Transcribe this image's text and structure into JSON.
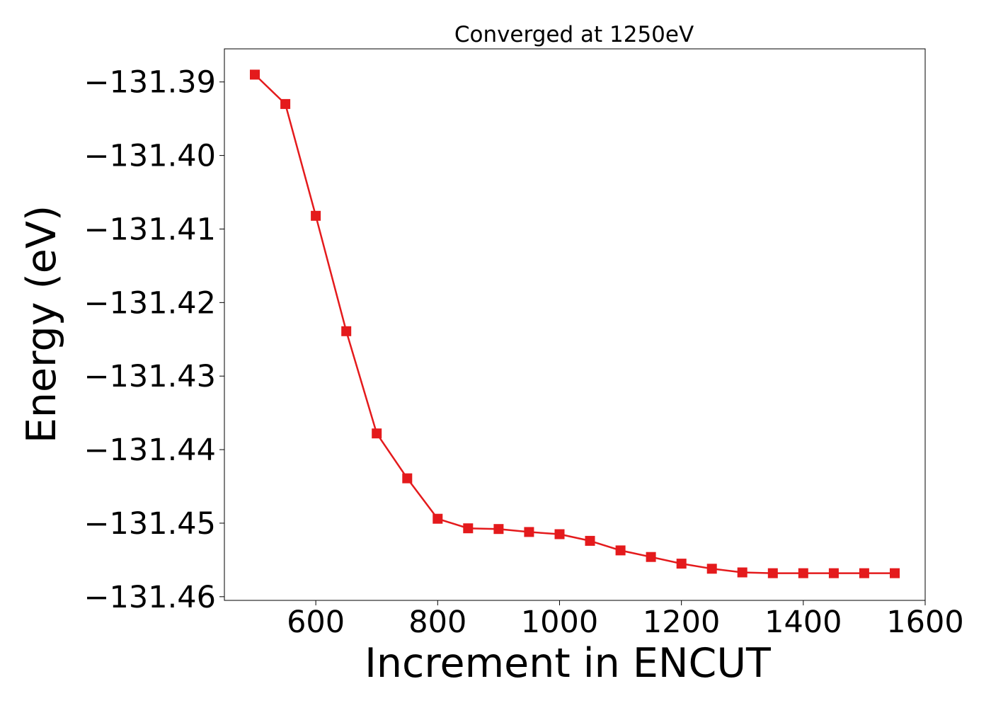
{
  "chart_data": {
    "type": "line",
    "title": "Converged at 1250eV",
    "xlabel": "Increment in ENCUT",
    "ylabel": "Energy (eV)",
    "xlim": [
      450,
      1600
    ],
    "ylim": [
      -131.4605,
      -131.3855
    ],
    "x_ticks": [
      600,
      800,
      1000,
      1200,
      1400,
      1600
    ],
    "x_tick_labels": [
      "600",
      "800",
      "1000",
      "1200",
      "1400",
      "1600"
    ],
    "y_ticks": [
      -131.39,
      -131.4,
      -131.41,
      -131.42,
      -131.43,
      -131.44,
      -131.45,
      -131.46
    ],
    "y_tick_labels": [
      "−131.39",
      "−131.40",
      "−131.41",
      "−131.42",
      "−131.43",
      "−131.44",
      "−131.45",
      "−131.46"
    ],
    "grid": false,
    "series": [
      {
        "color": "#e41a1c",
        "marker": "square",
        "x": [
          500,
          550,
          600,
          650,
          700,
          750,
          800,
          850,
          900,
          950,
          1000,
          1050,
          1100,
          1150,
          1200,
          1250,
          1300,
          1350,
          1400,
          1450,
          1500,
          1550
        ],
        "y": [
          -131.389,
          -131.393,
          -131.4082,
          -131.4239,
          -131.4378,
          -131.4439,
          -131.4494,
          -131.4507,
          -131.4508,
          -131.4512,
          -131.4515,
          -131.4524,
          -131.4537,
          -131.4546,
          -131.4555,
          -131.4562,
          -131.4567,
          -131.4568,
          -131.4568,
          -131.4568,
          -131.4568,
          -131.4568
        ]
      }
    ]
  }
}
